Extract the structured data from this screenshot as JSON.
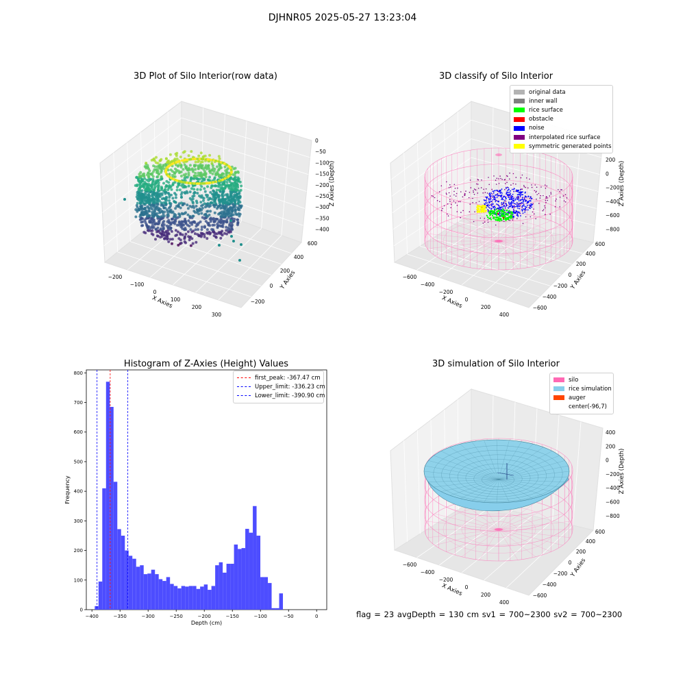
{
  "suptitle": "DJHNR05 2025-05-27 13:23:04",
  "panels": {
    "raw": {
      "title": "3D Plot of Silo Interior(row data)",
      "xlabel": "X Axies",
      "ylabel": "Y Axies",
      "zlabel": "Z Axies (Depth)",
      "xticks": [
        "−200",
        "−100",
        "0",
        "100",
        "200",
        "300"
      ],
      "yticks": [
        "−200",
        "0",
        "200",
        "400",
        "600"
      ],
      "zticks": [
        "0",
        "−50",
        "−100",
        "−150",
        "−200",
        "−250",
        "−300",
        "−350",
        "−400"
      ]
    },
    "classify": {
      "title": "3D classify of Silo Interior",
      "xlabel": "X Axies",
      "ylabel": "Y Axies",
      "zlabel": "Z Axies (Depth)",
      "xticks": [
        "−600",
        "−400",
        "−200",
        "0",
        "200",
        "400"
      ],
      "yticks": [
        "−600",
        "−400",
        "−200",
        "0",
        "200",
        "400",
        "600"
      ],
      "zticks": [
        "200",
        "0",
        "−200",
        "−400",
        "−600",
        "−800"
      ],
      "legend": [
        {
          "label": "original data",
          "color": "#b3b3b3"
        },
        {
          "label": "inner wall",
          "color": "#808080"
        },
        {
          "label": "rice surface",
          "color": "#00ff00"
        },
        {
          "label": "obstacle",
          "color": "#ff0000"
        },
        {
          "label": "noise",
          "color": "#0000ff"
        },
        {
          "label": "interpolated rice surface",
          "color": "#800080"
        },
        {
          "label": "symmetric generated points",
          "color": "#ffff00"
        }
      ]
    },
    "histogram": {
      "title": "Histogram of Z-Axies (Height) Values",
      "xlabel": "Depth (cm)",
      "ylabel": "Frequency",
      "xticks": [
        "−400",
        "−350",
        "−300",
        "−250",
        "−200",
        "−150",
        "−100",
        "−50",
        "0"
      ],
      "yticks": [
        "0",
        "100",
        "200",
        "300",
        "400",
        "500",
        "600",
        "700",
        "800"
      ],
      "legend": [
        {
          "label": "first_peak: -367.47 cm",
          "color": "#ff0000"
        },
        {
          "label": "Upper_limit: -336.23 cm",
          "color": "#0000ff"
        },
        {
          "label": "Lower_limit: -390.90 cm",
          "color": "#0000ff"
        }
      ]
    },
    "simulation": {
      "title": "3D simulation of Silo Interior",
      "xlabel": "X Axies",
      "ylabel": "Y Axies",
      "zlabel": "Z Axies (Depth)",
      "xticks": [
        "−600",
        "−400",
        "−200",
        "0",
        "200",
        "400"
      ],
      "yticks": [
        "−600",
        "−400",
        "−200",
        "0",
        "200",
        "400",
        "600"
      ],
      "zticks": [
        "400",
        "200",
        "0",
        "−200",
        "−400",
        "−600",
        "−800"
      ],
      "legend": [
        {
          "label": "silo",
          "color": "#ff69b4"
        },
        {
          "label": "rice simulation",
          "color": "#87ceeb"
        },
        {
          "label": "auger",
          "color": "#ff4500"
        },
        {
          "label": "center(-96,7)",
          "color": ""
        }
      ]
    }
  },
  "footer": "flag = 23   avgDepth = 130 cm   sv1 = 700~2300   sv2 = 700~2300",
  "chart_data": [
    {
      "type": "scatter",
      "title": "3D Plot of Silo Interior(row data)",
      "xlabel": "X Axies",
      "ylabel": "Y Axies",
      "zlabel": "Z Axies (Depth)",
      "xlim": [
        -250,
        350
      ],
      "ylim": [
        -250,
        650
      ],
      "zlim": [
        -420,
        10
      ],
      "colormap": "viridis"
    },
    {
      "type": "scatter",
      "title": "3D classify of Silo Interior",
      "xlabel": "X Axies",
      "ylabel": "Y Axies",
      "zlabel": "Z Axies (Depth)",
      "xlim": [
        -700,
        500
      ],
      "ylim": [
        -700,
        700
      ],
      "zlim": [
        -900,
        300
      ],
      "series": [
        {
          "name": "original data"
        },
        {
          "name": "inner wall"
        },
        {
          "name": "rice surface"
        },
        {
          "name": "obstacle"
        },
        {
          "name": "noise"
        },
        {
          "name": "interpolated rice surface"
        },
        {
          "name": "symmetric generated points"
        }
      ]
    },
    {
      "type": "bar",
      "title": "Histogram of Z-Axies (Height) Values",
      "xlabel": "Depth (cm)",
      "ylabel": "Frequency",
      "xlim": [
        -410,
        18
      ],
      "ylim": [
        0,
        810
      ],
      "bin_width": 6.7,
      "bin_start": -395,
      "values": [
        12,
        95,
        410,
        770,
        685,
        432,
        272,
        250,
        200,
        182,
        172,
        145,
        150,
        120,
        122,
        135,
        120,
        103,
        97,
        110,
        87,
        80,
        72,
        80,
        78,
        80,
        80,
        70,
        78,
        85,
        67,
        80,
        150,
        160,
        125,
        155,
        155,
        220,
        205,
        208,
        273,
        260,
        350,
        250,
        110,
        110,
        90,
        5,
        5,
        55
      ],
      "vlines": [
        {
          "name": "first_peak",
          "x": -367.47,
          "color": "#ff0000"
        },
        {
          "name": "Upper_limit",
          "x": -336.23,
          "color": "#0000ff"
        },
        {
          "name": "Lower_limit",
          "x": -390.9,
          "color": "#0000ff"
        }
      ]
    },
    {
      "type": "area",
      "title": "3D simulation of Silo Interior",
      "xlabel": "X Axies",
      "ylabel": "Y Axies",
      "zlabel": "Z Axies (Depth)",
      "xlim": [
        -700,
        500
      ],
      "ylim": [
        -700,
        700
      ],
      "zlim": [
        -900,
        500
      ],
      "series": [
        {
          "name": "silo"
        },
        {
          "name": "rice simulation"
        },
        {
          "name": "auger"
        }
      ]
    }
  ]
}
